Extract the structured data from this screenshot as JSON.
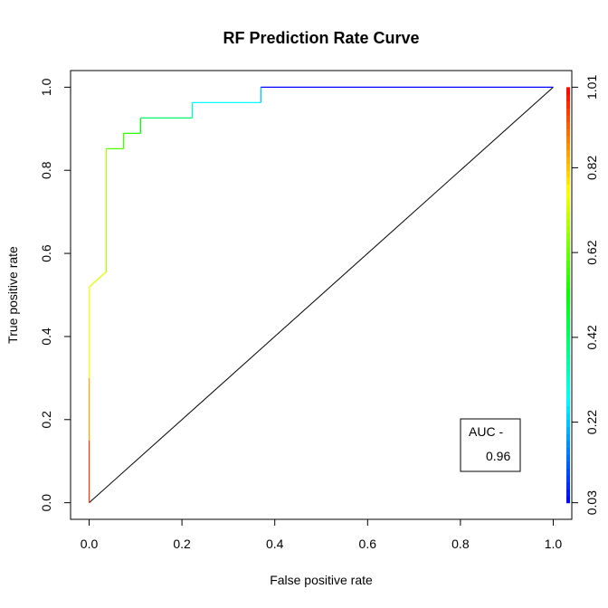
{
  "chart_data": {
    "type": "line",
    "title": "RF Prediction Rate Curve",
    "xlabel": "False positive rate",
    "ylabel": "True positive rate",
    "xlim": [
      -0.04,
      1.04
    ],
    "ylim": [
      -0.04,
      1.04
    ],
    "x_ticks": [
      "0.0",
      "0.2",
      "0.4",
      "0.6",
      "0.8",
      "1.0"
    ],
    "y_ticks": [
      "0.0",
      "0.2",
      "0.4",
      "0.6",
      "0.8",
      "1.0"
    ],
    "grid": false,
    "series": [
      {
        "x": [
          0,
          0,
          0,
          0,
          0.037,
          0.037,
          0.074,
          0.074,
          0.111,
          0.111,
          0.222,
          0.222,
          0.37,
          0.37,
          1.0
        ],
        "y": [
          0,
          0.15,
          0.3,
          0.519,
          0.556,
          0.852,
          0.852,
          0.889,
          0.889,
          0.926,
          0.926,
          0.963,
          0.963,
          1.0,
          1.0
        ],
        "cutoff": [
          1.01,
          0.95,
          0.85,
          0.76,
          0.74,
          0.68,
          0.6,
          0.58,
          0.56,
          0.52,
          0.42,
          0.33,
          0.27,
          0.22,
          0.03
        ]
      }
    ],
    "reference_line": {
      "x": [
        0,
        1
      ],
      "y": [
        0,
        1
      ]
    },
    "colorbar": {
      "position": "right",
      "min": 0.03,
      "max": 1.01,
      "tick_values": [
        0.03,
        0.22,
        0.42,
        0.62,
        0.82,
        1.01
      ],
      "tick_labels": [
        "0.03",
        "0.22",
        "0.42",
        "0.62",
        "0.82",
        "1.01"
      ]
    },
    "annotation": {
      "label": "AUC -",
      "value": "0.96",
      "location": "bottom-right"
    }
  }
}
